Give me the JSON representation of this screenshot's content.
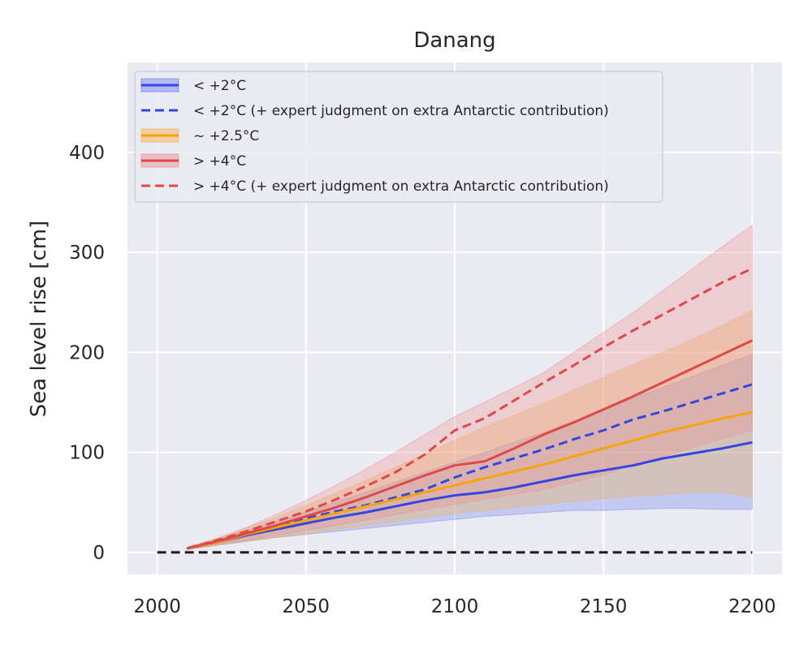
{
  "chart_data": {
    "type": "line",
    "title": "Danang",
    "xlabel": "",
    "ylabel": "Sea level rise [cm]",
    "xlim": [
      1990,
      2210
    ],
    "ylim": [
      -22,
      490
    ],
    "xticks": [
      2000,
      2050,
      2100,
      2150,
      2200
    ],
    "yticks": [
      0,
      100,
      200,
      300,
      400
    ],
    "grid": true,
    "legend_position": "top-left",
    "baseline": {
      "y": 0,
      "x_range": [
        2000,
        2200
      ],
      "style": "dashed",
      "color": "#1a1a1a"
    },
    "x": [
      2010,
      2020,
      2030,
      2040,
      2050,
      2060,
      2070,
      2080,
      2090,
      2100,
      2110,
      2120,
      2130,
      2140,
      2150,
      2160,
      2170,
      2180,
      2190,
      2200
    ],
    "series": [
      {
        "name": "< +2°C",
        "color": "#3346e0",
        "style": "solid",
        "values": [
          4,
          10,
          17,
          23,
          29,
          35,
          40,
          46,
          52,
          57,
          60,
          65,
          71,
          77,
          82,
          87,
          94,
          99,
          104,
          110
        ],
        "band_low": [
          3,
          7,
          11,
          15,
          18,
          21,
          24,
          27,
          30,
          33,
          36,
          38,
          40,
          42,
          42,
          43,
          44,
          44,
          43,
          43
        ],
        "band_high": [
          5,
          13,
          22,
          31,
          40,
          50,
          60,
          70,
          80,
          90,
          100,
          110,
          120,
          131,
          142,
          154,
          165,
          176,
          187,
          198
        ],
        "band_color": "#6f82f0"
      },
      {
        "name": "< +2°C (+ expert judgment on extra Antarctic contribution)",
        "color": "#3346e0",
        "style": "dashed",
        "values": [
          4,
          11,
          19,
          26,
          34,
          41,
          47,
          55,
          63,
          75,
          85,
          94,
          103,
          113,
          122,
          133,
          141,
          150,
          159,
          168
        ]
      },
      {
        "name": "~ +2.5°C",
        "color": "#f5a500",
        "style": "solid",
        "values": [
          4,
          10,
          18,
          25,
          32,
          39,
          46,
          53,
          60,
          67,
          74,
          81,
          88,
          96,
          104,
          112,
          120,
          127,
          134,
          140
        ],
        "band_low": [
          3,
          7,
          11,
          15,
          19,
          23,
          27,
          31,
          35,
          39,
          42,
          45,
          48,
          51,
          54,
          56,
          58,
          60,
          60,
          55
        ],
        "band_high": [
          5,
          13,
          24,
          35,
          47,
          59,
          72,
          85,
          98,
          112,
          125,
          137,
          149,
          162,
          175,
          188,
          200,
          213,
          227,
          242
        ],
        "band_color": "#f6b24a"
      },
      {
        "name": "> +4°C",
        "color": "#e04848",
        "style": "solid",
        "values": [
          4,
          11,
          19,
          27,
          36,
          45,
          55,
          66,
          77,
          87,
          91,
          104,
          118,
          130,
          143,
          156,
          170,
          184,
          198,
          212
        ],
        "band_low": [
          3,
          8,
          12,
          17,
          22,
          27,
          32,
          38,
          43,
          48,
          53,
          58,
          63,
          70,
          78,
          87,
          96,
          105,
          114,
          122
        ],
        "band_high": [
          5,
          14,
          25,
          38,
          52,
          67,
          83,
          100,
          118,
          136,
          150,
          165,
          180,
          200,
          220,
          240,
          262,
          284,
          306,
          327
        ],
        "band_color": "#ec8f8f"
      },
      {
        "name": "> +4°C (+ expert judgment on extra Antarctic contribution)",
        "color": "#e04848",
        "style": "dashed",
        "values": [
          4,
          12,
          21,
          31,
          41,
          53,
          66,
          80,
          98,
          122,
          134,
          152,
          170,
          187,
          205,
          222,
          238,
          254,
          270,
          284
        ]
      }
    ]
  }
}
